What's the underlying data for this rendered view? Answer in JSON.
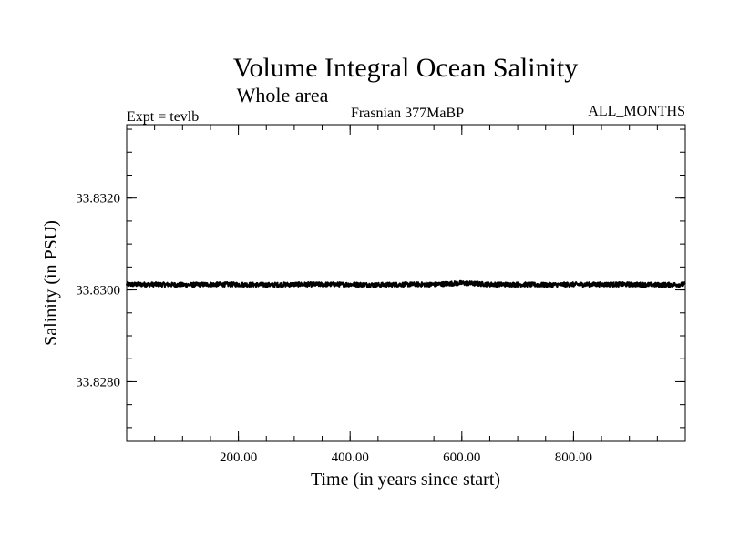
{
  "chart_data": {
    "type": "line",
    "title": "Volume Integral Ocean Salinity",
    "subtitle": "Whole area",
    "left_label": "Expt = tevlb",
    "center_label": "Frasnian 377MaBP",
    "right_label": "ALL_MONTHS",
    "xlabel": "Time (in years since start)",
    "ylabel": "Salinity (in PSU)",
    "xlim": [
      0,
      1000
    ],
    "ylim": [
      33.8267,
      33.8336
    ],
    "x_ticks": [
      200,
      400,
      600,
      800
    ],
    "x_tick_labels": [
      "200.00",
      "400.00",
      "600.00",
      "800.00"
    ],
    "x_minor_step": 50,
    "y_ticks": [
      33.828,
      33.83,
      33.832
    ],
    "y_tick_labels": [
      "33.8280",
      "33.8300",
      "33.8320"
    ],
    "y_minor_step": 0.0005,
    "grid": false,
    "series": [
      {
        "name": "salinity",
        "x": [
          0,
          50,
          100,
          150,
          200,
          250,
          300,
          350,
          400,
          450,
          500,
          550,
          600,
          650,
          700,
          750,
          800,
          850,
          900,
          950,
          1000
        ],
        "values": [
          33.83012,
          33.83012,
          33.83011,
          33.83012,
          33.83012,
          33.83011,
          33.83012,
          33.83012,
          33.83012,
          33.83011,
          33.83012,
          33.83012,
          33.83015,
          33.83012,
          33.83012,
          33.83011,
          33.83012,
          33.83012,
          33.83012,
          33.83011,
          33.83012
        ],
        "noise_amplitude": 5e-05
      }
    ],
    "line_color": "#000000"
  }
}
